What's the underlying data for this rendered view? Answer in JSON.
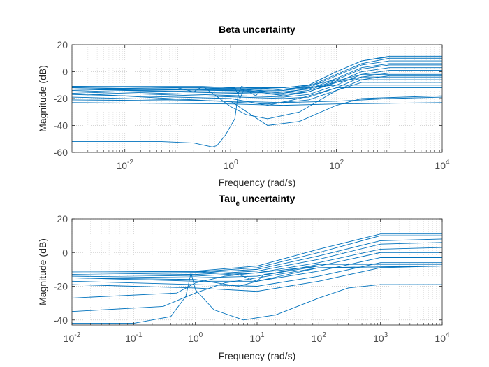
{
  "chart_data": [
    {
      "type": "line",
      "title": "Beta uncertainty",
      "title_sub": "",
      "xlabel": "Frequency  (rad/s)",
      "ylabel": "Magnitude (dB)",
      "xscale": "log",
      "xlim": [
        0.001,
        10000
      ],
      "ylim": [
        -60,
        20
      ],
      "yticks": [
        -60,
        -40,
        -20,
        0,
        20
      ],
      "xticks": [
        0.01,
        1,
        100,
        10000
      ],
      "xtick_labels": [
        {
          "base": "10",
          "exp": "-2"
        },
        {
          "base": "10",
          "exp": "0"
        },
        {
          "base": "10",
          "exp": "2"
        },
        {
          "base": "10",
          "exp": "4"
        }
      ],
      "grid": "minor-dotted",
      "line_color": "#0072bd",
      "series": [
        {
          "points": [
            [
              0.001,
              -11
            ],
            [
              10,
              -12
            ],
            [
              30,
              -10
            ],
            [
              100,
              0
            ],
            [
              300,
              8
            ],
            [
              1000,
              11
            ],
            [
              10000,
              11
            ]
          ]
        },
        {
          "points": [
            [
              0.001,
              -11
            ],
            [
              10,
              -12
            ],
            [
              30,
              -10
            ],
            [
              100,
              0
            ],
            [
              300,
              8
            ],
            [
              1000,
              11.5
            ],
            [
              10000,
              11.5
            ]
          ]
        },
        {
          "points": [
            [
              0.001,
              -11
            ],
            [
              10,
              -13
            ],
            [
              30,
              -11
            ],
            [
              100,
              -2
            ],
            [
              300,
              6
            ],
            [
              1000,
              10
            ],
            [
              10000,
              10
            ]
          ]
        },
        {
          "points": [
            [
              0.001,
              -12
            ],
            [
              10,
              -14
            ],
            [
              30,
              -12
            ],
            [
              100,
              -3
            ],
            [
              300,
              5
            ],
            [
              1000,
              8
            ],
            [
              10000,
              8
            ]
          ]
        },
        {
          "points": [
            [
              0.001,
              -12
            ],
            [
              10,
              -15
            ],
            [
              30,
              -13
            ],
            [
              100,
              -5
            ],
            [
              300,
              3
            ],
            [
              1000,
              6
            ],
            [
              10000,
              6
            ]
          ]
        },
        {
          "points": [
            [
              0.001,
              -13
            ],
            [
              10,
              -16
            ],
            [
              30,
              -14
            ],
            [
              100,
              -6
            ],
            [
              300,
              2
            ],
            [
              1000,
              5
            ],
            [
              10000,
              5
            ]
          ]
        },
        {
          "points": [
            [
              0.001,
              -13
            ],
            [
              10,
              -17
            ],
            [
              30,
              -15
            ],
            [
              100,
              -8
            ],
            [
              300,
              0
            ],
            [
              1000,
              3
            ],
            [
              10000,
              3
            ]
          ]
        },
        {
          "points": [
            [
              0.001,
              -14
            ],
            [
              10,
              -19
            ],
            [
              30,
              -17
            ],
            [
              100,
              -10
            ],
            [
              300,
              -2
            ],
            [
              1000,
              1
            ],
            [
              10000,
              1
            ]
          ]
        },
        {
          "points": [
            [
              0.001,
              -15
            ],
            [
              10,
              -20
            ],
            [
              30,
              -19
            ],
            [
              100,
              -12
            ],
            [
              300,
              -4
            ],
            [
              1000,
              -1
            ],
            [
              10000,
              -1
            ]
          ]
        },
        {
          "points": [
            [
              0.001,
              -16
            ],
            [
              5,
              -24
            ],
            [
              30,
              -21
            ],
            [
              100,
              -14
            ],
            [
              300,
              -6
            ],
            [
              1000,
              -3
            ],
            [
              10000,
              -3
            ]
          ]
        },
        {
          "points": [
            [
              0.001,
              -11
            ],
            [
              0.1,
              -12
            ],
            [
              0.2,
              -15
            ],
            [
              0.3,
              -11
            ],
            [
              1,
              -12
            ],
            [
              10,
              -18
            ],
            [
              30,
              -15
            ],
            [
              100,
              -7
            ],
            [
              300,
              -2
            ],
            [
              10000,
              -2
            ]
          ]
        },
        {
          "points": [
            [
              0.001,
              -12
            ],
            [
              0.3,
              -13
            ],
            [
              1.2,
              -12
            ],
            [
              1.5,
              -20
            ],
            [
              1.8,
              -13
            ],
            [
              10,
              -16
            ],
            [
              100,
              -8
            ],
            [
              300,
              -4
            ],
            [
              10000,
              -4
            ]
          ]
        },
        {
          "points": [
            [
              0.001,
              -13
            ],
            [
              2,
              -14
            ],
            [
              3,
              -18
            ],
            [
              4,
              -12
            ],
            [
              10,
              -14
            ],
            [
              100,
              -6
            ],
            [
              10000,
              -6
            ]
          ]
        },
        {
          "points": [
            [
              0.001,
              -11
            ],
            [
              0.3,
              -11
            ],
            [
              1,
              -26
            ],
            [
              2,
              -32
            ],
            [
              5,
              -35
            ],
            [
              20,
              -30
            ],
            [
              100,
              -14
            ],
            [
              300,
              -8
            ],
            [
              10000,
              -8
            ]
          ]
        },
        {
          "points": [
            [
              0.001,
              -17
            ],
            [
              1,
              -20
            ],
            [
              5,
              -25
            ],
            [
              20,
              -20
            ],
            [
              100,
              -12
            ],
            [
              10000,
              -12
            ]
          ]
        },
        {
          "points": [
            [
              0.001,
              -19
            ],
            [
              1,
              -22
            ],
            [
              5,
              -40
            ],
            [
              20,
              -37
            ],
            [
              100,
              -25
            ],
            [
              300,
              -20
            ],
            [
              10000,
              -18
            ]
          ]
        },
        {
          "points": [
            [
              0.001,
              -21
            ],
            [
              1,
              -22
            ],
            [
              10,
              -23
            ],
            [
              100,
              -22
            ],
            [
              1000,
              -20
            ],
            [
              10000,
              -19
            ]
          ]
        },
        {
          "points": [
            [
              0.001,
              -23
            ],
            [
              1,
              -24
            ],
            [
              10,
              -25
            ],
            [
              100,
              -24
            ],
            [
              10000,
              -23
            ]
          ]
        },
        {
          "points": [
            [
              0.001,
              -52
            ],
            [
              0.05,
              -52
            ],
            [
              0.2,
              -53
            ],
            [
              0.45,
              -56
            ],
            [
              0.55,
              -55
            ],
            [
              0.8,
              -47
            ],
            [
              1.2,
              -35
            ],
            [
              1.4,
              -16
            ],
            [
              1.6,
              -11
            ],
            [
              2,
              -12
            ],
            [
              10,
              -13
            ],
            [
              100,
              -10
            ],
            [
              10000,
              -10
            ]
          ]
        }
      ]
    },
    {
      "type": "line",
      "title": "Tau",
      "title_sub": "e",
      "title_rest": " uncertainty",
      "xlabel": "Frequency  (rad/s)",
      "ylabel": "Magnitude (dB)",
      "xscale": "log",
      "xlim": [
        0.01,
        10000
      ],
      "ylim": [
        -43,
        20
      ],
      "yticks": [
        -40,
        -20,
        0,
        20
      ],
      "xticks": [
        0.01,
        0.1,
        1,
        10,
        100,
        1000,
        10000
      ],
      "xtick_labels": [
        {
          "base": "10",
          "exp": "-2"
        },
        {
          "base": "10",
          "exp": "-1"
        },
        {
          "base": "10",
          "exp": "0"
        },
        {
          "base": "10",
          "exp": "1"
        },
        {
          "base": "10",
          "exp": "2"
        },
        {
          "base": "10",
          "exp": "3"
        },
        {
          "base": "10",
          "exp": "4"
        }
      ],
      "grid": "minor-dotted",
      "line_color": "#0072bd",
      "series": [
        {
          "points": [
            [
              0.01,
              -11
            ],
            [
              1,
              -11
            ],
            [
              10,
              -8
            ],
            [
              100,
              2
            ],
            [
              1000,
              11
            ],
            [
              10000,
              11
            ]
          ]
        },
        {
          "points": [
            [
              0.01,
              -11
            ],
            [
              1,
              -11.5
            ],
            [
              10,
              -9
            ],
            [
              100,
              0
            ],
            [
              1000,
              10
            ],
            [
              10000,
              10
            ]
          ]
        },
        {
          "points": [
            [
              0.01,
              -12
            ],
            [
              1,
              -12
            ],
            [
              10,
              -10
            ],
            [
              100,
              -2
            ],
            [
              1000,
              7
            ],
            [
              10000,
              8
            ]
          ]
        },
        {
          "points": [
            [
              0.01,
              -12
            ],
            [
              1,
              -13
            ],
            [
              10,
              -11
            ],
            [
              100,
              -4
            ],
            [
              1000,
              5
            ],
            [
              10000,
              6
            ]
          ]
        },
        {
          "points": [
            [
              0.01,
              -13
            ],
            [
              1,
              -14
            ],
            [
              10,
              -12
            ],
            [
              100,
              -6
            ],
            [
              1000,
              2
            ],
            [
              10000,
              3
            ]
          ]
        },
        {
          "points": [
            [
              0.01,
              -14
            ],
            [
              1,
              -15
            ],
            [
              10,
              -14
            ],
            [
              100,
              -8
            ],
            [
              1000,
              0
            ],
            [
              10000,
              0
            ]
          ]
        },
        {
          "points": [
            [
              0.01,
              -15
            ],
            [
              1,
              -17
            ],
            [
              10,
              -17
            ],
            [
              100,
              -11
            ],
            [
              1000,
              -3
            ],
            [
              10000,
              -3
            ]
          ]
        },
        {
          "points": [
            [
              0.01,
              -17
            ],
            [
              1,
              -19
            ],
            [
              10,
              -20
            ],
            [
              100,
              -14
            ],
            [
              1000,
              -6
            ],
            [
              10000,
              -6
            ]
          ]
        },
        {
          "points": [
            [
              0.01,
              -19
            ],
            [
              1,
              -21
            ],
            [
              10,
              -23
            ],
            [
              100,
              -17
            ],
            [
              1000,
              -9
            ],
            [
              10000,
              -8
            ]
          ]
        },
        {
          "points": [
            [
              0.01,
              -11
            ],
            [
              1,
              -11
            ],
            [
              5,
              -13
            ],
            [
              8,
              -16
            ],
            [
              10,
              -17
            ],
            [
              13,
              -13
            ],
            [
              20,
              -12
            ],
            [
              100,
              -7
            ],
            [
              10000,
              -7
            ]
          ]
        },
        {
          "points": [
            [
              0.01,
              -15
            ],
            [
              1,
              -16
            ],
            [
              5,
              -20
            ],
            [
              10,
              -17
            ],
            [
              100,
              -9
            ],
            [
              10000,
              -8
            ]
          ]
        },
        {
          "points": [
            [
              0.01,
              -27
            ],
            [
              0.5,
              -24
            ],
            [
              1,
              -18
            ],
            [
              3,
              -14
            ],
            [
              10,
              -12
            ],
            [
              100,
              -8
            ],
            [
              10000,
              -8
            ]
          ]
        },
        {
          "points": [
            [
              0.01,
              -35
            ],
            [
              0.3,
              -32
            ],
            [
              1,
              -24
            ],
            [
              3,
              -18
            ],
            [
              10,
              -15
            ],
            [
              100,
              -9
            ],
            [
              10000,
              -8
            ]
          ]
        },
        {
          "points": [
            [
              0.01,
              -42
            ],
            [
              0.1,
              -42
            ],
            [
              0.4,
              -38
            ],
            [
              0.7,
              -26
            ],
            [
              0.85,
              -12
            ],
            [
              1.0,
              -22
            ],
            [
              2,
              -34
            ],
            [
              6,
              -40
            ],
            [
              20,
              -37
            ],
            [
              100,
              -27
            ],
            [
              300,
              -21
            ],
            [
              1000,
              -19
            ],
            [
              10000,
              -19
            ]
          ]
        }
      ]
    }
  ]
}
